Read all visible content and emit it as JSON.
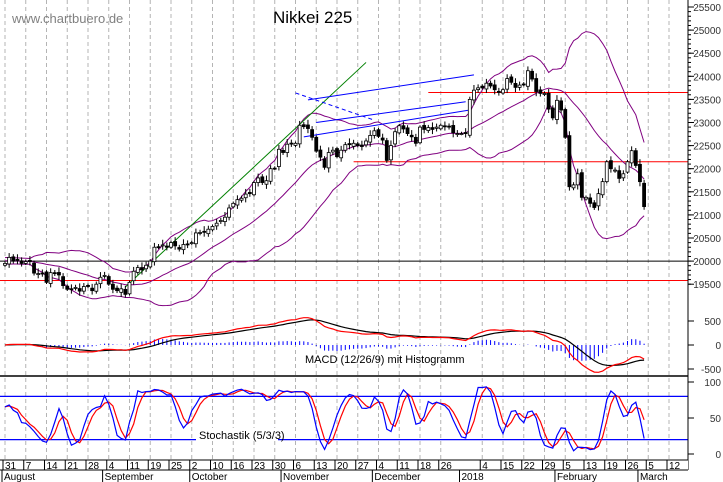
{
  "header": {
    "site": "www.chartbuero.de",
    "title": "Nikkei 225"
  },
  "indicators": {
    "macd_label": "MACD (12/26/9) mit Histogramm",
    "stoch_label": "Stochastik (5/3/3)"
  },
  "colors": {
    "bollinger": "#800080",
    "macd": "#000000",
    "signal": "#ff0000",
    "histogram": "#0000ff",
    "stoch_k": "#0000ff",
    "stoch_d": "#ff0000",
    "support_resistance": "#ff0000",
    "trend_up": "#008000",
    "channel": "#0000ff"
  },
  "chart_data": {
    "type": "candlestick",
    "title": "Nikkei 225",
    "price_axis": {
      "ticks": [
        25500,
        25000,
        24500,
        24000,
        23500,
        23000,
        22500,
        22000,
        21500,
        21000,
        20500,
        20000,
        19500
      ],
      "ylim": [
        19400,
        25650
      ]
    },
    "macd_axis": {
      "ticks": [
        500,
        0,
        -500
      ]
    },
    "stoch_axis": {
      "ticks": [
        100,
        50,
        0
      ],
      "levels": [
        80,
        20
      ]
    },
    "x_axis": {
      "day_ticks": [
        "31",
        "7",
        "14",
        "21",
        "28",
        "4",
        "11",
        "19",
        "25",
        "2",
        "10",
        "16",
        "23",
        "30",
        "6",
        "13",
        "20",
        "27",
        "4",
        "11",
        "18",
        "26",
        "4",
        "15",
        "22",
        "29",
        "5",
        "13",
        "19",
        "26",
        "5",
        "12"
      ],
      "months": [
        "August",
        "September",
        "October",
        "November",
        "December",
        "2018",
        "February",
        "March"
      ]
    },
    "weeks": [
      {
        "week": "2017-07-31",
        "closes": [
          19950,
          20080,
          20000,
          20030,
          19950
        ]
      },
      {
        "week": "2017-08-07",
        "closes": [
          19990,
          19990,
          19740,
          19730,
          19730
        ]
      },
      {
        "week": "2017-08-14",
        "closes": [
          19540,
          19750,
          19730,
          19700,
          19470
        ]
      },
      {
        "week": "2017-08-21",
        "closes": [
          19390,
          19380,
          19430,
          19350,
          19450
        ]
      },
      {
        "week": "2017-08-28",
        "closes": [
          19450,
          19360,
          19500,
          19650,
          19690
        ]
      },
      {
        "week": "2017-09-04",
        "closes": [
          19500,
          19390,
          19360,
          19400,
          19280
        ]
      },
      {
        "week": "2017-09-11",
        "closes": [
          19540,
          19780,
          19860,
          19810,
          19910
        ]
      },
      {
        "week": "2017-09-18",
        "closes": [
          20000,
          20300,
          20310,
          20350,
          20300
        ]
      },
      {
        "week": "2017-09-25",
        "closes": [
          20400,
          20330,
          20260,
          20360,
          20350
        ]
      },
      {
        "week": "2017-10-02",
        "closes": [
          20400,
          20610,
          20620,
          20630,
          20690
        ]
      },
      {
        "week": "2017-10-09",
        "closes": [
          20750,
          20820,
          20880,
          20950,
          21150
        ]
      },
      {
        "week": "2017-10-16",
        "closes": [
          21250,
          21330,
          21360,
          21450,
          21460
        ]
      },
      {
        "week": "2017-10-23",
        "closes": [
          21700,
          21800,
          21700,
          21740,
          22000
        ]
      },
      {
        "week": "2017-10-30",
        "closes": [
          22010,
          22420,
          22350,
          22530,
          22540
        ]
      },
      {
        "week": "2017-11-06",
        "closes": [
          22550,
          22940,
          22910,
          22870,
          22680
        ]
      },
      {
        "week": "2017-11-13",
        "closes": [
          22380,
          22250,
          22030,
          22350,
          22400
        ]
      },
      {
        "week": "2017-11-20",
        "closes": [
          22260,
          22400,
          22520,
          22520,
          22550
        ]
      },
      {
        "week": "2017-11-27",
        "closes": [
          22500,
          22480,
          22600,
          22720,
          22820
        ]
      },
      {
        "week": "2017-12-04",
        "closes": [
          22700,
          22620,
          22180,
          22500,
          22800
        ]
      },
      {
        "week": "2017-12-11",
        "closes": [
          22930,
          22860,
          22760,
          22690,
          22550
        ]
      },
      {
        "week": "2017-12-18",
        "closes": [
          22900,
          22850,
          22890,
          22850,
          22900
        ]
      },
      {
        "week": "2017-12-25",
        "closes": [
          22940,
          22910,
          22900,
          22780,
          22760
        ]
      },
      {
        "week": "2018-01-01",
        "closes": [
          22760,
          22760,
          23500,
          23700,
          23750
        ]
      },
      {
        "week": "2018-01-08",
        "closes": [
          23750,
          23850,
          23790,
          23710,
          23650
        ]
      },
      {
        "week": "2018-01-15",
        "closes": [
          23710,
          23950,
          23870,
          23760,
          23810
        ]
      },
      {
        "week": "2018-01-22",
        "closes": [
          23820,
          24120,
          23940,
          23670,
          23630
        ]
      },
      {
        "week": "2018-01-29",
        "closes": [
          23630,
          23290,
          23100,
          23480,
          23270
        ]
      },
      {
        "week": "2018-02-05",
        "closes": [
          22680,
          21610,
          21650,
          21890,
          21380
        ]
      },
      {
        "week": "2018-02-12",
        "closes": [
          21380,
          21250,
          21160,
          21460,
          21720
        ]
      },
      {
        "week": "2018-02-19",
        "closes": [
          22150,
          22000,
          21970,
          21790,
          21890
        ]
      },
      {
        "week": "2018-02-26",
        "closes": [
          22150,
          22390,
          22070,
          21720,
          21180
        ]
      }
    ],
    "horizontal_lines": [
      {
        "price": 23650,
        "from": "2017-12-20",
        "color": "#ff0000"
      },
      {
        "price": 22150,
        "from": "2017-11-24",
        "color": "#ff0000"
      },
      {
        "price": 20000,
        "from": "2017-07-31",
        "color": "#000000"
      },
      {
        "price": 19580,
        "from": "2017-07-31",
        "color": "#ff0000"
      }
    ],
    "trendlines": [
      {
        "from": [
          "2017-09-08",
          19440
        ],
        "to": [
          "2017-11-29",
          24300
        ],
        "color": "#008000",
        "dashed": false
      },
      {
        "from": [
          "2017-11-06",
          23640
        ],
        "to": [
          "2017-12-01",
          23050
        ],
        "color": "#0000ff",
        "dashed": true
      },
      {
        "from": [
          "2017-11-09",
          23490
        ],
        "to": [
          "2018-01-04",
          24030
        ],
        "color": "#0000ff",
        "dashed": false
      },
      {
        "from": [
          "2017-11-08",
          22690
        ],
        "to": [
          "2018-01-03",
          23270
        ],
        "color": "#0000ff",
        "dashed": false
      },
      {
        "from": [
          "2017-11-13",
          23000
        ],
        "to": [
          "2018-01-02",
          23450
        ],
        "color": "#0000ff",
        "dashed": false
      }
    ]
  }
}
